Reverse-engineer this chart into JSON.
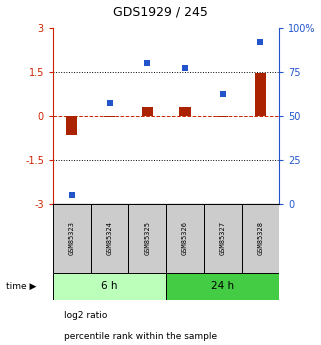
{
  "title": "GDS1929 / 245",
  "samples": [
    "GSM85323",
    "GSM85324",
    "GSM85325",
    "GSM85326",
    "GSM85327",
    "GSM85328"
  ],
  "log2_ratio": [
    -0.65,
    -0.05,
    0.3,
    0.3,
    -0.05,
    1.45
  ],
  "percentile_rank": [
    5,
    57,
    80,
    77,
    62,
    92
  ],
  "ylim_left": [
    -3,
    3
  ],
  "ylim_right": [
    0,
    100
  ],
  "yticks_left": [
    -3,
    -1.5,
    0,
    1.5,
    3
  ],
  "ytick_labels_left": [
    "-3",
    "-1.5",
    "0",
    "1.5",
    "3"
  ],
  "yticks_right": [
    0,
    25,
    50,
    75,
    100
  ],
  "ytick_labels_right": [
    "0",
    "25",
    "50",
    "75",
    "100%"
  ],
  "bar_color_log2": "#aa2200",
  "bar_color_pct": "#2255cc",
  "bar_width": 0.3,
  "group1_color": "#bbffbb",
  "group2_color": "#44cc44",
  "legend_log2_label": "log2 ratio",
  "legend_pct_label": "percentile rank within the sample",
  "time_label": "time"
}
